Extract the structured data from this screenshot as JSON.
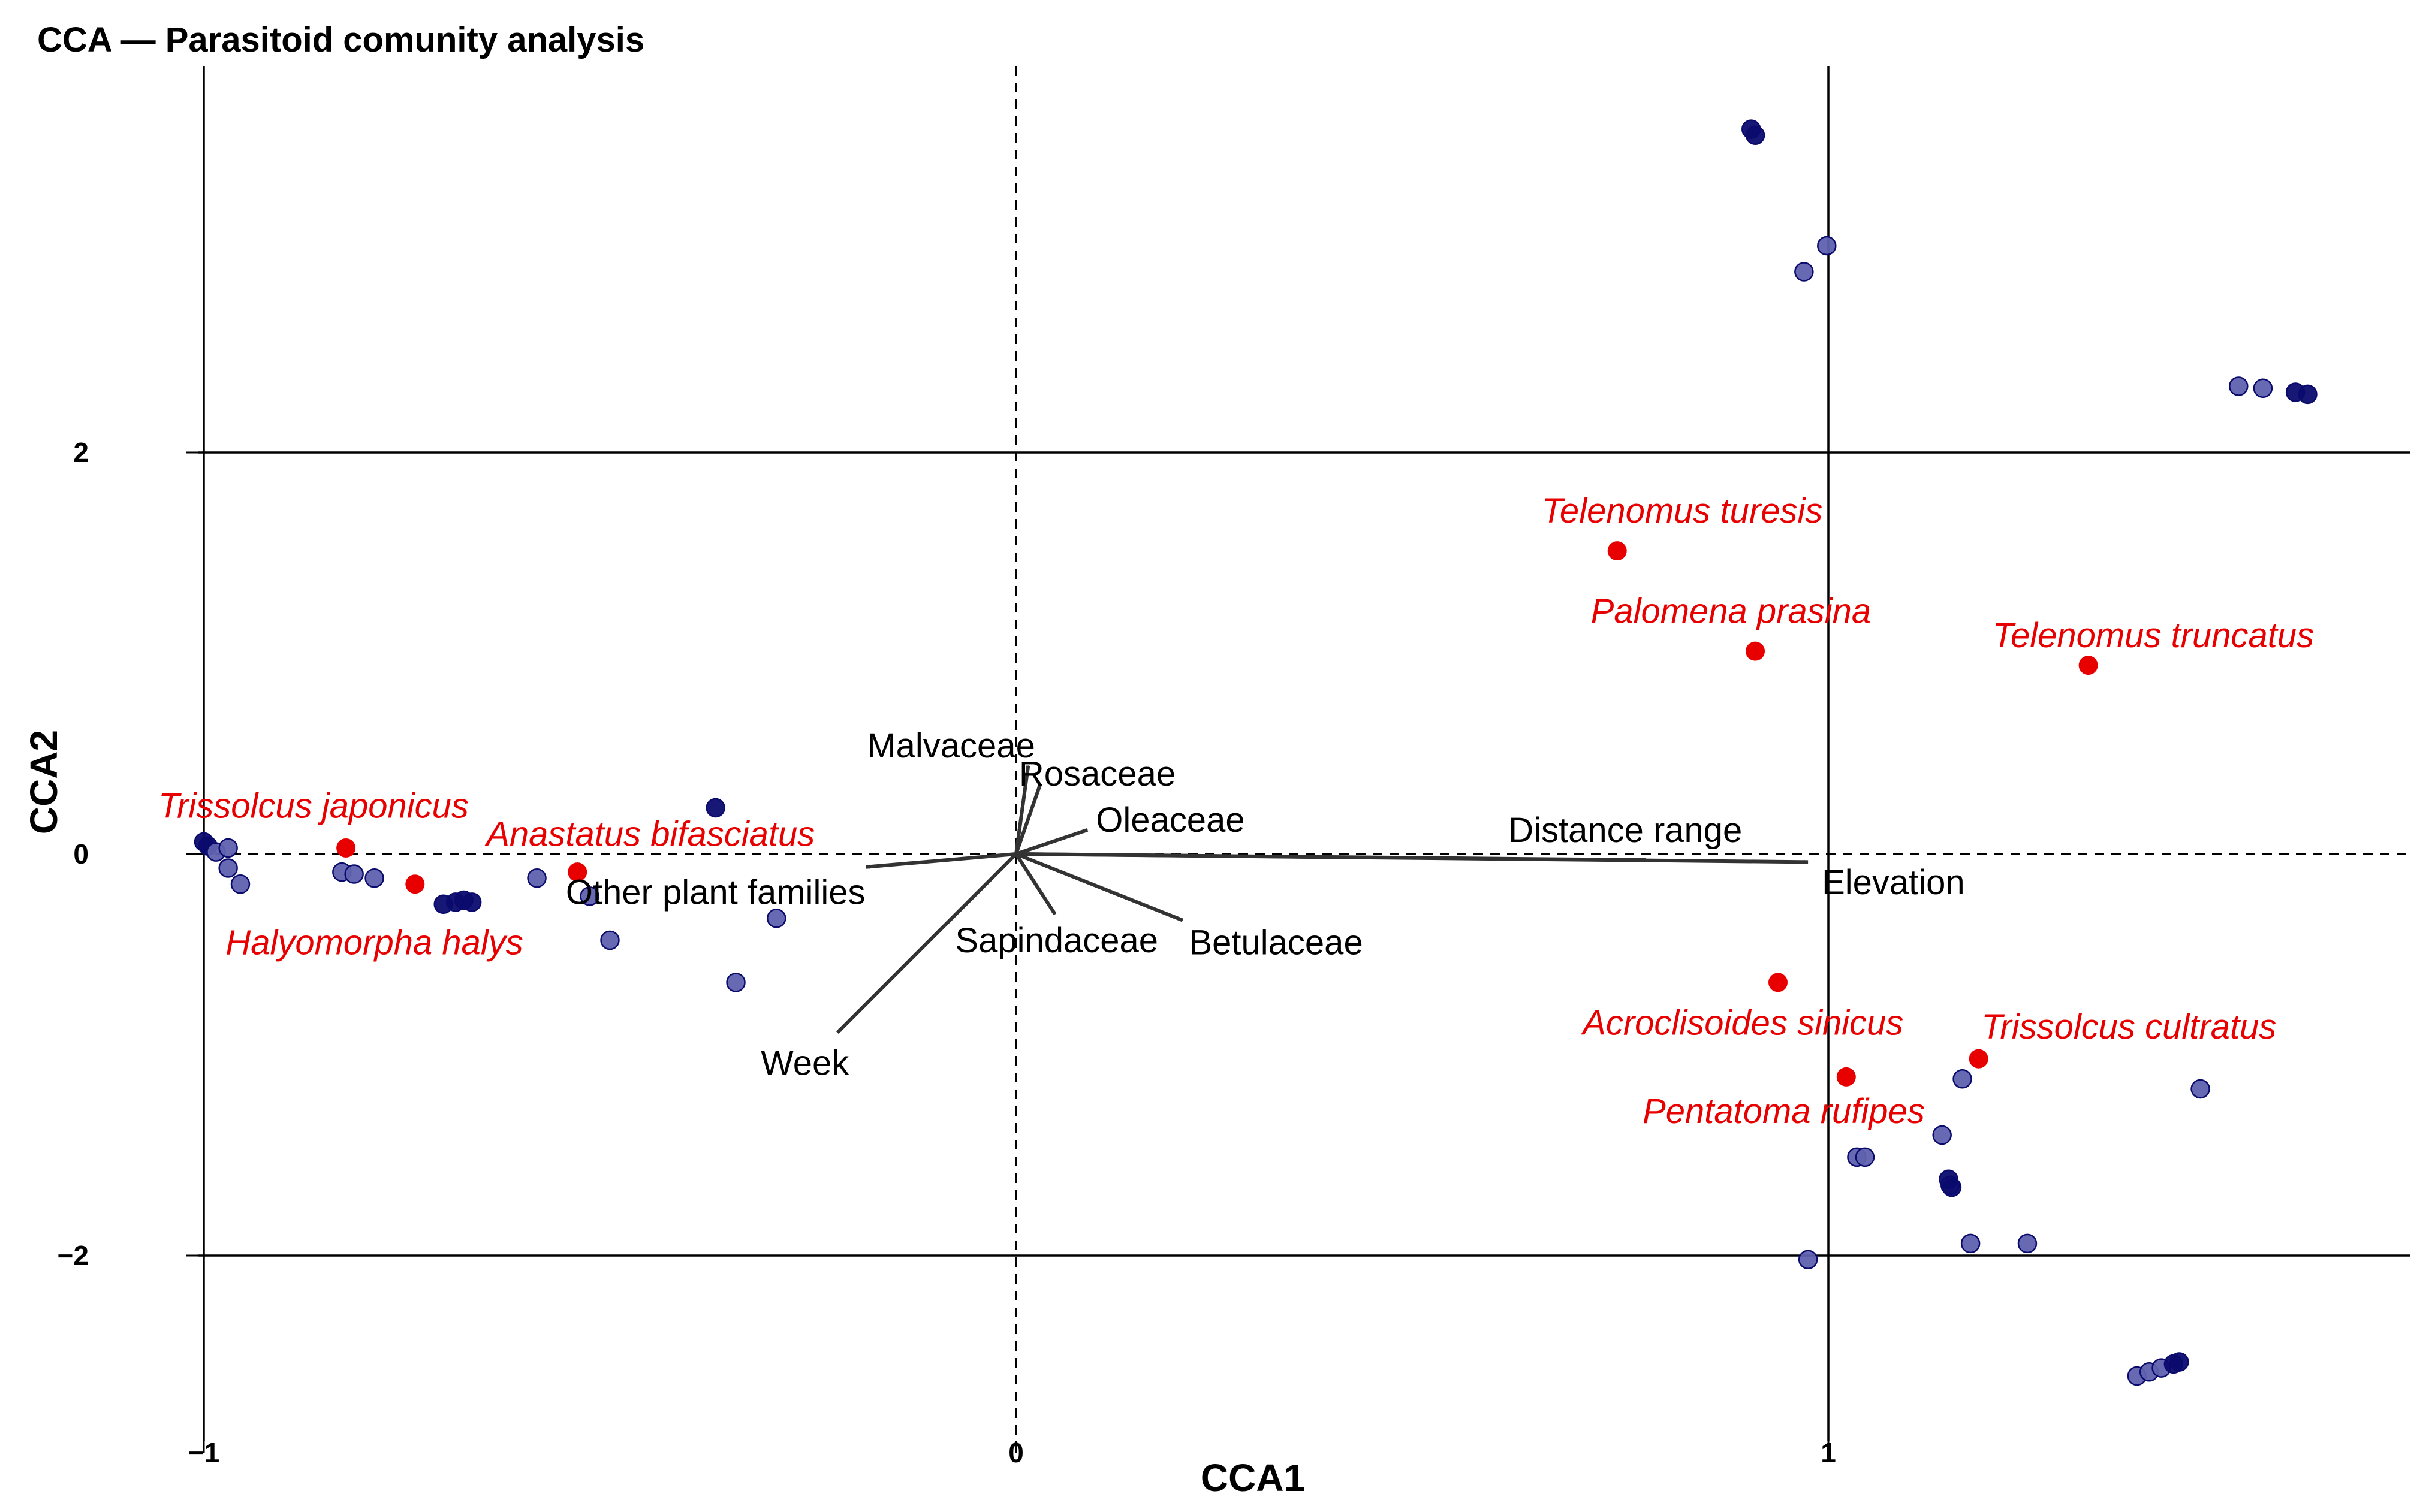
{
  "chart_data": {
    "type": "scatter",
    "title": "CCA — Parasitoid comunity analysis",
    "xlabel": "CCA1",
    "ylabel": "CCA2",
    "xlim": [
      -1.0,
      1.72
    ],
    "ylim": [
      -2.72,
      3.9
    ],
    "xticks": [
      {
        "value": -1,
        "label": "−1"
      },
      {
        "value": 0,
        "label": "0"
      },
      {
        "value": 1,
        "label": "1"
      }
    ],
    "yticks": [
      {
        "value": -2,
        "label": "−2"
      },
      {
        "value": 0,
        "label": "0"
      },
      {
        "value": 2,
        "label": "2"
      }
    ],
    "reference_lines": {
      "x": 0,
      "y": 0,
      "style": "dashed"
    },
    "grid_lines": {
      "x": [
        -1,
        1
      ],
      "y": [
        -2,
        2
      ]
    },
    "colors": {
      "site_light": "#5f62ae",
      "site_dark": "#0b0b6e",
      "species": "#e80000",
      "arrow": "#333333"
    },
    "sites": [
      {
        "x": -1.0,
        "y": 0.06,
        "dark": true
      },
      {
        "x": -0.995,
        "y": 0.04,
        "dark": true
      },
      {
        "x": -0.985,
        "y": 0.01,
        "dark": false
      },
      {
        "x": -0.97,
        "y": 0.03,
        "dark": false
      },
      {
        "x": -0.97,
        "y": -0.07,
        "dark": false
      },
      {
        "x": -0.955,
        "y": -0.15,
        "dark": false
      },
      {
        "x": -0.83,
        "y": -0.09,
        "dark": false
      },
      {
        "x": -0.815,
        "y": -0.1,
        "dark": false
      },
      {
        "x": -0.79,
        "y": -0.12,
        "dark": false
      },
      {
        "x": -0.705,
        "y": -0.25,
        "dark": true
      },
      {
        "x": -0.69,
        "y": -0.24,
        "dark": true
      },
      {
        "x": -0.68,
        "y": -0.23,
        "dark": true
      },
      {
        "x": -0.67,
        "y": -0.24,
        "dark": true
      },
      {
        "x": -0.59,
        "y": -0.12,
        "dark": false
      },
      {
        "x": -0.525,
        "y": -0.21,
        "dark": false
      },
      {
        "x": -0.5,
        "y": -0.43,
        "dark": false
      },
      {
        "x": -0.37,
        "y": 0.23,
        "dark": true
      },
      {
        "x": -0.345,
        "y": -0.64,
        "dark": false
      },
      {
        "x": -0.295,
        "y": -0.32,
        "dark": false
      },
      {
        "x": 0.905,
        "y": 3.61,
        "dark": true
      },
      {
        "x": 0.91,
        "y": 3.58,
        "dark": true
      },
      {
        "x": 0.97,
        "y": 2.9,
        "dark": false
      },
      {
        "x": 0.998,
        "y": 3.03,
        "dark": false
      },
      {
        "x": 0.975,
        "y": -2.02,
        "dark": false
      },
      {
        "x": 1.035,
        "y": -1.51,
        "dark": false
      },
      {
        "x": 1.045,
        "y": -1.51,
        "dark": false
      },
      {
        "x": 1.14,
        "y": -1.4,
        "dark": false
      },
      {
        "x": 1.15,
        "y": -1.65,
        "dark": false
      },
      {
        "x": 1.148,
        "y": -1.62,
        "dark": true
      },
      {
        "x": 1.152,
        "y": -1.66,
        "dark": true
      },
      {
        "x": 1.165,
        "y": -1.12,
        "dark": false
      },
      {
        "x": 1.175,
        "y": -1.94,
        "dark": false
      },
      {
        "x": 1.245,
        "y": -1.94,
        "dark": false
      },
      {
        "x": 1.38,
        "y": -2.6,
        "dark": false
      },
      {
        "x": 1.395,
        "y": -2.58,
        "dark": false
      },
      {
        "x": 1.41,
        "y": -2.56,
        "dark": false
      },
      {
        "x": 1.425,
        "y": -2.54,
        "dark": true
      },
      {
        "x": 1.432,
        "y": -2.53,
        "dark": true
      },
      {
        "x": 1.458,
        "y": -1.17,
        "dark": false
      },
      {
        "x": 1.505,
        "y": 2.33,
        "dark": false
      },
      {
        "x": 1.535,
        "y": 2.32,
        "dark": false
      },
      {
        "x": 1.575,
        "y": 2.3,
        "dark": true
      },
      {
        "x": 1.59,
        "y": 2.29,
        "dark": true
      }
    ],
    "species": [
      {
        "name": "Trissolcus japonicus",
        "x": -0.825,
        "y": 0.03,
        "label_x": -0.865,
        "label_y": 0.24
      },
      {
        "name": "Halyomorpha halys",
        "x": -0.74,
        "y": -0.15,
        "label_x": -0.79,
        "label_y": -0.44
      },
      {
        "name": "Anastatus bifasciatus",
        "x": -0.54,
        "y": -0.09,
        "label_x": -0.45,
        "label_y": 0.1
      },
      {
        "name": "Telenomus turesis",
        "x": 0.74,
        "y": 1.51,
        "label_x": 0.82,
        "label_y": 1.71
      },
      {
        "name": "Palomena prasina",
        "x": 0.91,
        "y": 1.01,
        "label_x": 0.88,
        "label_y": 1.21
      },
      {
        "name": "Telenomus truncatus",
        "x": 1.32,
        "y": 0.94,
        "label_x": 1.4,
        "label_y": 1.09
      },
      {
        "name": "Acroclisoides sinicus",
        "x": 0.938,
        "y": -0.64,
        "label_x": 0.895,
        "label_y": -0.84
      },
      {
        "name": "Trissolcus cultratus",
        "x": 1.185,
        "y": -1.02,
        "label_x": 1.37,
        "label_y": -0.86
      },
      {
        "name": "Pentatoma rufipes",
        "x": 1.022,
        "y": -1.11,
        "label_x": 0.945,
        "label_y": -1.28
      }
    ],
    "env_vectors": [
      {
        "name": "Malvaceae",
        "x": 0.015,
        "y": 0.44,
        "label_x": -0.08,
        "label_y": 0.54
      },
      {
        "name": "Rosaceae",
        "x": 0.03,
        "y": 0.35,
        "label_x": 0.1,
        "label_y": 0.4
      },
      {
        "name": "Oleaceae",
        "x": 0.088,
        "y": 0.12,
        "label_x": 0.19,
        "label_y": 0.17
      },
      {
        "name": "Distance range",
        "x": 0.775,
        "y": -0.03,
        "label_x": 0.75,
        "label_y": 0.12
      },
      {
        "name": "Elevation",
        "x": 0.975,
        "y": -0.04,
        "label_x": 1.08,
        "label_y": -0.14
      },
      {
        "name": "Other plant families",
        "x": -0.185,
        "y": -0.065,
        "label_x": -0.37,
        "label_y": -0.19
      },
      {
        "name": "Sapindaceae",
        "x": 0.048,
        "y": -0.3,
        "label_x": 0.05,
        "label_y": -0.43
      },
      {
        "name": "Betulaceae",
        "x": 0.205,
        "y": -0.33,
        "label_x": 0.32,
        "label_y": -0.44
      },
      {
        "name": "Week",
        "x": -0.22,
        "y": -0.89,
        "label_x": -0.26,
        "label_y": -1.04
      }
    ]
  }
}
